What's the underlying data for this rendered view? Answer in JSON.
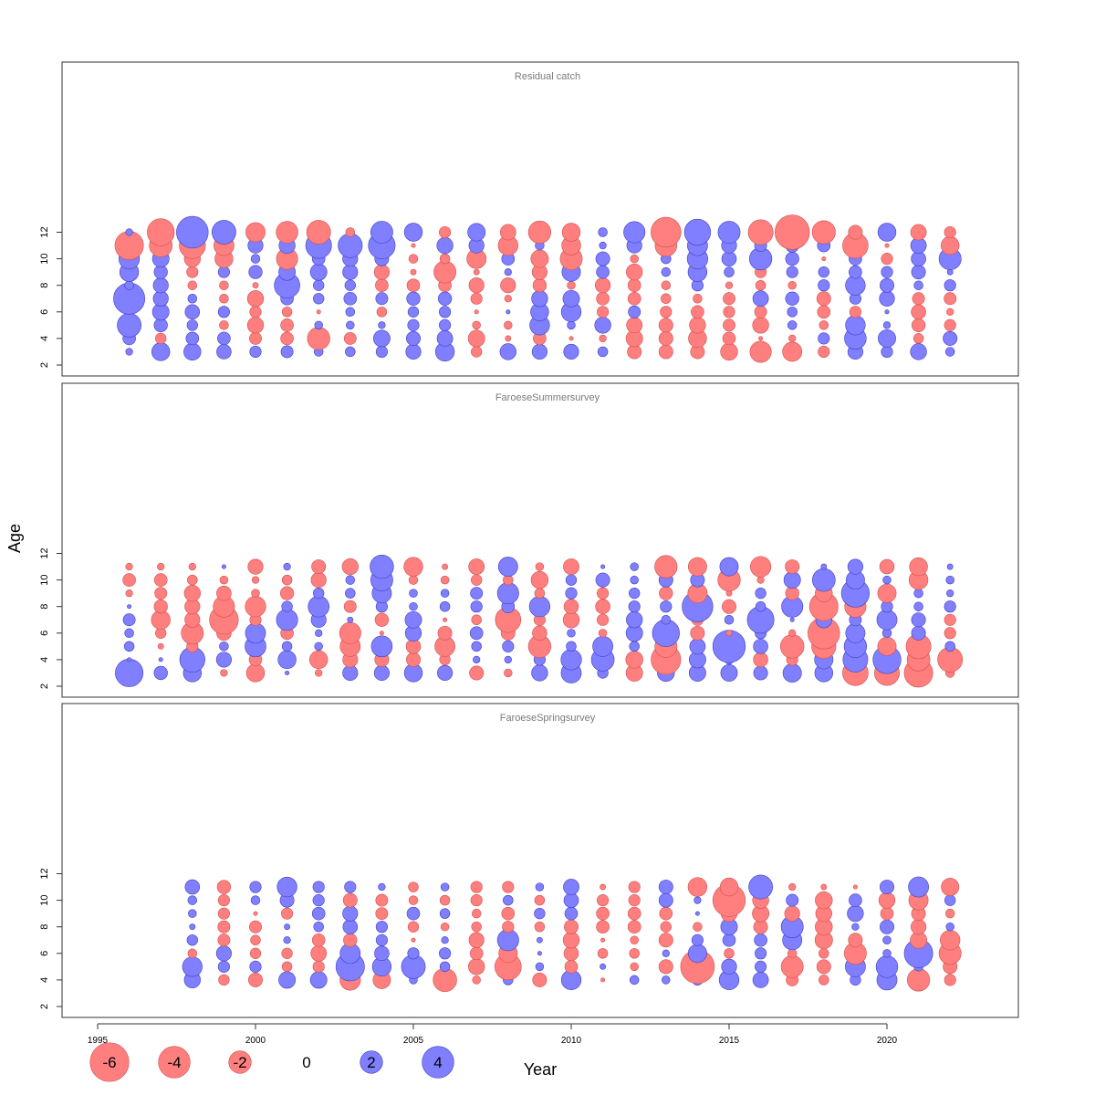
{
  "chart_data": {
    "type": "scatter",
    "subtype": "bubble",
    "xlabel": "Year",
    "ylabel": "Age",
    "xlim": [
      1994.5,
      2024.0
    ],
    "ylim": [
      1.5,
      13.5
    ],
    "x_ticks": [
      1995,
      2000,
      2005,
      2010,
      2015,
      2020
    ],
    "y_ticks": [
      2,
      4,
      6,
      8,
      10,
      12
    ],
    "colors": {
      "negative": "#ff7f7f",
      "negative_stroke": "#d05050",
      "positive": "#7f7fff",
      "positive_stroke": "#4040c0"
    },
    "legend": {
      "placement": "bottom-left",
      "values": [
        -6,
        -4,
        -2,
        0,
        2,
        4
      ],
      "labels": [
        "-6",
        "-4",
        "-2",
        "0",
        "2",
        "4"
      ]
    },
    "panels": [
      {
        "title": "Residual catch",
        "years": [
          1996,
          1997,
          1998,
          1999,
          2000,
          2001,
          2002,
          2003,
          2004,
          2005,
          2006,
          2007,
          2008,
          2009,
          2010,
          2011,
          2012,
          2013,
          2014,
          2015,
          2016,
          2017,
          2018,
          2019,
          2020,
          2021,
          2022
        ],
        "ages": [
          3,
          4,
          5,
          6,
          7,
          8,
          9,
          10,
          11,
          12
        ],
        "residuals": [
          [
            0.3,
            2.0,
            1.8,
            1.3,
            0.8,
            0.9,
            0.5,
            0.6,
            0.8,
            1.4,
            2.2,
            -0.7,
            1.6,
            1.4,
            1.4,
            0.6,
            -1.2,
            -1.2,
            -1.2,
            -1.8,
            -2.8,
            -2.3,
            -0.8,
            1.4,
            0.8,
            1.6,
            0.5
          ],
          [
            1.0,
            -0.7,
            1.0,
            1.0,
            -0.9,
            -1.0,
            -3.1,
            -0.9,
            1.7,
            1.2,
            1.5,
            -1.7,
            -0.2,
            -1.0,
            -0.1,
            -0.3,
            -1.7,
            -1.2,
            -2.0,
            -1.0,
            -0.1,
            -0.3,
            0.8,
            2.9,
            1.9,
            -0.6,
            1.2
          ],
          [
            3.5,
            1.1,
            0.7,
            -0.5,
            -1.6,
            -1.0,
            0.4,
            0.4,
            0.3,
            0.8,
            0.8,
            -0.4,
            -0.4,
            2.4,
            0.4,
            1.6,
            -1.5,
            -1.2,
            -1.6,
            -0.9,
            -1.6,
            0.5,
            -0.5,
            2.4,
            0.3,
            -1.1,
            -0.8
          ],
          [
            0.1,
            1.7,
            1.3,
            0.8,
            -0.8,
            -0.6,
            -0.1,
            0.5,
            -0.6,
            0.7,
            0.8,
            -0.1,
            0.1,
            2.0,
            2.4,
            -0.8,
            0.9,
            -0.8,
            -1.0,
            -0.8,
            -0.9,
            0.6,
            -1.0,
            -0.8,
            0.1,
            -1.3,
            -0.3
          ],
          [
            6.0,
            1.4,
            0.5,
            -0.5,
            -1.6,
            1.0,
            0.7,
            1.0,
            0.9,
            1.1,
            1.1,
            -0.8,
            -0.3,
            1.6,
            1.7,
            -1.0,
            -1.0,
            -0.6,
            -0.5,
            -0.9,
            1.5,
            1.1,
            -1.2,
            0.8,
            1.4,
            -0.9,
            -0.9
          ],
          [
            0.5,
            1.4,
            -0.5,
            -0.5,
            -0.2,
            4.0,
            0.7,
            0.7,
            -1.0,
            -1.0,
            -1.0,
            -1.4,
            -1.4,
            -1.1,
            -0.4,
            -1.4,
            -1.0,
            -0.5,
            0.8,
            -0.3,
            -0.6,
            -0.4,
            0.8,
            2.4,
            1.2,
            0.5,
            0.8
          ],
          [
            2.2,
            1.1,
            -0.8,
            0.8,
            1.1,
            1.7,
            1.7,
            1.4,
            -1.4,
            -0.2,
            -3.0,
            -0.2,
            0.3,
            -1.4,
            2.1,
            1.0,
            -1.6,
            0.5,
            2.2,
            0.6,
            -0.8,
            0.8,
            0.7,
            1.0,
            0.8,
            1.2,
            0.2
          ],
          [
            2.6,
            1.7,
            -1.6,
            -2.0,
            0.5,
            -2.8,
            1.0,
            1.4,
            1.2,
            -0.5,
            -0.6,
            -2.3,
            1.0,
            -1.9,
            -3.0,
            1.2,
            -0.4,
            0.6,
            2.6,
            1.3,
            3.1,
            1.1,
            -0.1,
            1.0,
            -0.8,
            1.3,
            3.0
          ],
          [
            -5.0,
            -3.2,
            -4.2,
            -2.5,
            1.4,
            1.6,
            4.1,
            3.6,
            4.4,
            -0.1,
            1.6,
            1.4,
            -2.4,
            0.5,
            -2.2,
            0.3,
            1.4,
            -2.9,
            2.5,
            1.4,
            0.9,
            1.1,
            1.0,
            -4.0,
            -0.1,
            1.5,
            -2.0
          ],
          [
            0.3,
            -4.5,
            6.2,
            3.5,
            -2.3,
            -2.9,
            -3.5,
            -0.5,
            3.0,
            2.0,
            -0.8,
            1.9,
            -1.5,
            -3.1,
            -2.0,
            0.5,
            2.8,
            -5.5,
            4.2,
            3.0,
            -3.8,
            -7.3,
            -3.3,
            -1.2,
            2.0,
            -1.5,
            -0.8
          ]
        ]
      },
      {
        "title": "FaroeseSummersurvey",
        "years": [
          1996,
          1997,
          1998,
          1999,
          2000,
          2001,
          2002,
          2003,
          2004,
          2005,
          2006,
          2007,
          2008,
          2009,
          2010,
          2011,
          2012,
          2013,
          2014,
          2015,
          2016,
          2017,
          2018,
          2019,
          2020,
          2021,
          2022
        ],
        "ages": [
          3,
          4,
          5,
          6,
          7,
          8,
          9,
          10,
          11
        ],
        "residuals": [
          [
            4.7,
            1.1,
            2.0,
            -0.3,
            -2.0,
            0.1,
            -0.3,
            1.4,
            1.4,
            2.0,
            1.4,
            -1.2,
            -0.4,
            1.6,
            2.5,
            0.7,
            -1.7,
            1.8,
            1.7,
            1.7,
            1.2,
            2.1,
            2.0,
            -4.0,
            -3.8,
            -5.0,
            -0.5
          ],
          [
            0.1,
            0.1,
            3.9,
            1.4,
            -1.0,
            2.0,
            -2.0,
            -1.4,
            -1.2,
            -1.2,
            -0.7,
            0.3,
            0.3,
            0.8,
            2.6,
            3.2,
            -1.8,
            -5.4,
            1.7,
            0.5,
            -1.3,
            -0.8,
            2.1,
            3.8,
            4.8,
            -3.2,
            -3.8
          ],
          [
            0.6,
            -0.2,
            -0.8,
            0.5,
            2.7,
            0.6,
            0.4,
            -2.5,
            2.7,
            -1.3,
            -2.5,
            0.6,
            0.8,
            -3.1,
            0.6,
            2.5,
            0.6,
            -3.0,
            1.5,
            6.5,
            1.3,
            -3.4,
            -3.6,
            3.1,
            -2.1,
            -3.8,
            0.6
          ],
          [
            0.5,
            -0.7,
            -3.0,
            -1.3,
            2.5,
            -1.0,
            0.3,
            -2.8,
            -0.1,
            1.6,
            -1.2,
            1.0,
            -1.2,
            -1.3,
            0.4,
            -0.4,
            1.7,
            4.5,
            -1.2,
            -0.2,
            0.8,
            -0.3,
            -6.2,
            2.3,
            0.5,
            1.2,
            -0.8
          ],
          [
            0.9,
            -2.2,
            -1.4,
            -5.1,
            -0.8,
            2.8,
            1.4,
            0.2,
            -1.1,
            1.7,
            -0.1,
            -0.6,
            -4.0,
            -0.8,
            -1.6,
            -0.8,
            1.6,
            0.5,
            -0.8,
            0.5,
            4.4,
            0.1,
            1.6,
            0.9,
            2.5,
            1.2,
            -0.8
          ],
          [
            0.1,
            -1.1,
            -1.4,
            -2.8,
            -2.6,
            0.7,
            2.7,
            -0.9,
            0.8,
            0.4,
            0.6,
            0.8,
            1.0,
            2.6,
            -1.3,
            -1.3,
            0.8,
            0.8,
            5.8,
            -1.2,
            0.6,
            2.8,
            -5.0,
            -2.8,
            0.8,
            0.5,
            0.8
          ],
          [
            -0.3,
            -0.9,
            -1.6,
            -1.3,
            -0.4,
            -1.1,
            0.7,
            0.6,
            2.3,
            0.4,
            0.4,
            0.9,
            2.8,
            -0.6,
            0.8,
            -0.8,
            0.7,
            -1.1,
            -2.3,
            -0.2,
            0.7,
            -1.1,
            -1.8,
            4.8,
            -2.1,
            0.5,
            0.3
          ],
          [
            -1.0,
            -1.0,
            -0.6,
            -0.4,
            -0.3,
            -0.6,
            -1.4,
            0.5,
            3.0,
            -0.5,
            -0.4,
            -0.7,
            -0.6,
            -1.8,
            0.7,
            1.2,
            0.4,
            1.2,
            1.2,
            -3.1,
            -0.3,
            1.7,
            3.2,
            2.1,
            0.4,
            -2.2,
            0.4
          ],
          [
            -0.3,
            -0.3,
            -0.3,
            0.1,
            -1.4,
            0.3,
            -1.2,
            -1.6,
            3.4,
            -2.2,
            -0.2,
            -1.5,
            2.3,
            -0.4,
            -1.5,
            0.1,
            0.4,
            -3.1,
            -2.1,
            2.1,
            -2.6,
            -1.2,
            0.2,
            1.4,
            -1.3,
            -2.0,
            0.2
          ]
        ]
      },
      {
        "title": "FaroeseSpringsurvey",
        "years": [
          1998,
          1999,
          2000,
          2001,
          2002,
          2003,
          2004,
          2005,
          2006,
          2007,
          2008,
          2009,
          2010,
          2011,
          2012,
          2013,
          2014,
          2015,
          2016,
          2017,
          2018,
          2019,
          2020,
          2021,
          2022
        ],
        "ages": [
          4,
          5,
          6,
          7,
          8,
          9,
          10,
          11
        ],
        "residuals": [
          [
            1.6,
            -0.7,
            -1.2,
            1.7,
            1.7,
            -2.6,
            -1.9,
            0.4,
            -3.4,
            -0.4,
            0.6,
            -1.2,
            2.4,
            -0.1,
            0.5,
            0.4,
            0.7,
            2.4,
            1.5,
            -0.9,
            -0.6,
            0.7,
            2.5,
            -3.1,
            -0.8
          ],
          [
            2.4,
            0.8,
            0.8,
            -0.6,
            -0.8,
            5.0,
            2.2,
            3.5,
            0.6,
            -1.6,
            -4.3,
            0.4,
            -1.0,
            0.2,
            -0.4,
            -1.2,
            -7.0,
            1.4,
            0.8,
            -3.0,
            -1.2,
            2.5,
            2.9,
            0.5,
            -1.2
          ],
          [
            -0.5,
            1.4,
            -0.7,
            -0.7,
            -1.5,
            2.5,
            1.3,
            0.8,
            0.8,
            -1.0,
            -2.1,
            0.1,
            -1.3,
            -0.6,
            -0.6,
            0.3,
            2.1,
            -0.6,
            0.8,
            -0.5,
            -0.6,
            -3.0,
            0.4,
            5.0,
            -3.0
          ],
          [
            0.7,
            -0.9,
            -0.6,
            0.3,
            -1.0,
            -1.1,
            0.8,
            -0.1,
            0.3,
            -1.4,
            2.8,
            0.2,
            -1.6,
            -0.1,
            -0.4,
            -1.2,
            0.8,
            1.0,
            1.0,
            2.3,
            -1.9,
            -1.2,
            0.4,
            -1.7,
            -2.4
          ],
          [
            0.2,
            -0.9,
            -0.9,
            0.2,
            0.6,
            1.3,
            0.8,
            -0.7,
            -0.4,
            -0.6,
            -0.8,
            -0.6,
            -1.2,
            -1.0,
            -1.0,
            -0.7,
            -0.5,
            1.7,
            -1.2,
            3.0,
            -1.8,
            0.3,
            1.2,
            -1.4,
            0.4
          ],
          [
            0.4,
            -0.8,
            -0.1,
            -0.8,
            1.0,
            1.4,
            -0.9,
            1.0,
            0.6,
            -0.5,
            -1.0,
            0.7,
            1.0,
            -1.0,
            -1.0,
            -1.0,
            0.1,
            -1.6,
            -1.7,
            -1.4,
            -1.6,
            1.6,
            -1.0,
            -1.2,
            -0.5
          ],
          [
            0.5,
            -0.8,
            0.5,
            1.2,
            0.8,
            -1.2,
            -0.9,
            -0.5,
            -0.6,
            -0.8,
            0.6,
            -0.6,
            1.3,
            -0.8,
            -0.8,
            1.2,
            0.3,
            -6.5,
            -1.6,
            0.9,
            -1.8,
            1.0,
            -1.6,
            -2.3,
            0.7
          ],
          [
            1.3,
            -1.1,
            0.8,
            2.4,
            0.8,
            0.8,
            0.3,
            -0.6,
            0.4,
            -0.8,
            -0.8,
            0.4,
            1.5,
            -0.2,
            -0.8,
            1.2,
            -2.2,
            -2.0,
            3.5,
            -0.3,
            -0.2,
            -0.1,
            1.2,
            2.5,
            -1.9
          ]
        ]
      }
    ]
  }
}
